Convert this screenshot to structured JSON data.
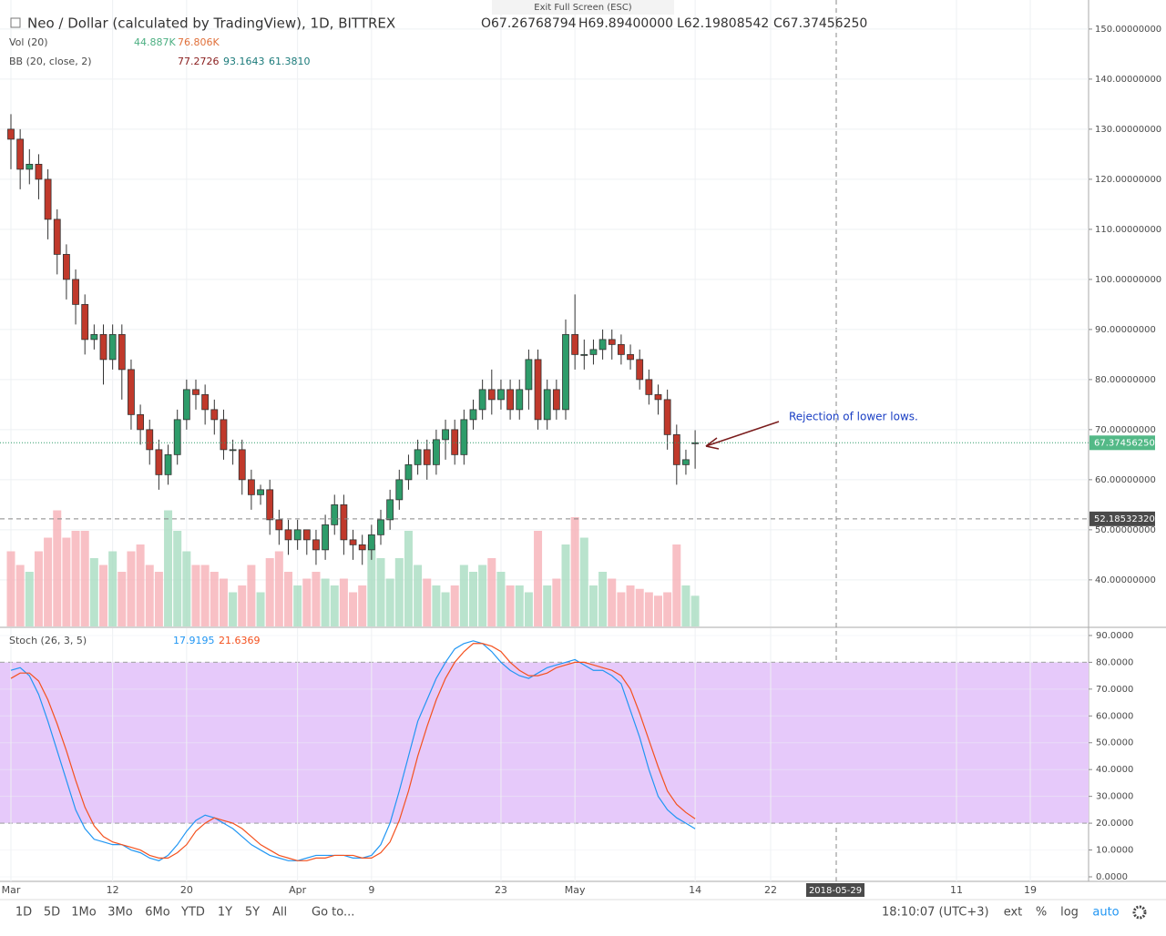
{
  "header": {
    "title": "Neo / Dollar (calculated by TradingView), 1D, BITTREX",
    "open": "O67.26768794",
    "high": "H69.89400000",
    "low": "L62.19808542",
    "close": "C67.37456250",
    "exit": "Exit Full Screen (ESC)",
    "vol_label": "Vol (20)",
    "vol_value": "44.887K",
    "vol_ma": "76.806K",
    "bb_label": "BB (20, close, 2)",
    "bb_mid": "77.2726",
    "bb_up": "93.1643",
    "bb_low": "61.3810",
    "stoch_label": "Stoch (26, 3, 5)",
    "stoch_k": "17.9195",
    "stoch_d": "21.6369"
  },
  "toolbar": {
    "ranges": [
      "1D",
      "5D",
      "1Mo",
      "3Mo",
      "6Mo",
      "YTD",
      "1Y",
      "5Y",
      "All"
    ],
    "goto": "Go to...",
    "clock": "18:10:07 (UTC+3)",
    "options": [
      "ext",
      "%",
      "log",
      "auto"
    ]
  },
  "chart_data": {
    "type": "candlestick",
    "annotation": "Rejection of lower lows.",
    "categories": [
      "Mar",
      null,
      null,
      null,
      null,
      null,
      null,
      null,
      null,
      null,
      null,
      "12",
      null,
      null,
      null,
      null,
      null,
      null,
      null,
      "20",
      null,
      null,
      null,
      null,
      null,
      null,
      null,
      null,
      null,
      null,
      null,
      "Apr",
      null,
      null,
      null,
      null,
      null,
      null,
      null,
      "9",
      null,
      null,
      null,
      null,
      null,
      null,
      null,
      null,
      null,
      null,
      null,
      null,
      null,
      "23",
      null,
      null,
      null,
      null,
      null,
      null,
      null,
      "May",
      null,
      null,
      null,
      null,
      null,
      null,
      null,
      null,
      null,
      null,
      null,
      null,
      "14"
    ],
    "future_labels": [
      "22",
      "2018-05-29",
      "11",
      "19"
    ],
    "open": [
      130,
      128,
      122,
      123,
      120,
      112,
      105,
      100,
      95,
      88,
      89,
      84,
      89,
      82,
      73,
      70,
      66,
      61,
      65,
      72,
      78,
      77,
      74,
      72,
      66,
      66,
      60,
      57,
      58,
      52,
      50,
      48,
      50,
      48,
      46,
      51,
      55,
      48,
      47,
      46,
      49,
      52,
      56,
      60,
      63,
      66,
      63,
      68,
      70,
      65,
      72,
      74,
      78,
      76,
      78,
      74,
      78,
      84,
      72,
      78,
      74,
      89,
      85,
      85,
      86,
      88,
      87,
      85,
      84,
      80,
      77,
      76,
      69,
      63,
      67.26768794
    ],
    "high": [
      133,
      130,
      126,
      125,
      122,
      114,
      107,
      102,
      97,
      91,
      91,
      91,
      91,
      84,
      75,
      72,
      68,
      67,
      74,
      80,
      80,
      79,
      76,
      74,
      68,
      68,
      62,
      59,
      60,
      54,
      52,
      52,
      50,
      50,
      53,
      57,
      57,
      50,
      49,
      51,
      54,
      58,
      62,
      65,
      68,
      68,
      70,
      72,
      72,
      74,
      76,
      80,
      82,
      80,
      80,
      80,
      86,
      86,
      80,
      80,
      92,
      97,
      88,
      88,
      90,
      90,
      89,
      87,
      86,
      82,
      79,
      78,
      71,
      66,
      69.894
    ],
    "low": [
      122,
      118,
      119,
      116,
      108,
      101,
      96,
      91,
      85,
      86,
      79,
      82,
      76,
      70,
      67,
      63,
      58,
      59,
      63,
      70,
      74,
      71,
      69,
      64,
      63,
      57,
      54,
      55,
      49,
      47,
      45,
      46,
      45,
      43,
      44,
      49,
      45,
      44,
      43,
      44,
      47,
      50,
      54,
      58,
      61,
      60,
      61,
      64,
      63,
      63,
      70,
      72,
      73,
      74,
      72,
      72,
      74,
      70,
      70,
      72,
      72,
      82,
      82,
      83,
      84,
      84,
      83,
      82,
      78,
      75,
      73,
      66,
      59,
      61,
      62.19808542
    ],
    "close": [
      128,
      122,
      123,
      120,
      112,
      105,
      100,
      95,
      88,
      89,
      84,
      89,
      82,
      73,
      70,
      66,
      61,
      65,
      72,
      78,
      77,
      74,
      72,
      66,
      66,
      60,
      57,
      58,
      52,
      50,
      48,
      50,
      48,
      46,
      51,
      55,
      48,
      47,
      46,
      49,
      52,
      56,
      60,
      63,
      66,
      63,
      68,
      70,
      65,
      72,
      74,
      78,
      76,
      78,
      74,
      78,
      84,
      72,
      78,
      74,
      89,
      85,
      85,
      86,
      88,
      87,
      85,
      84,
      80,
      77,
      76,
      69,
      63,
      64,
      67.3745625
    ],
    "close_label": "67.37456250",
    "crosshair": {
      "value": 52.1853232,
      "label": "52.18532320"
    },
    "volume": [
      110,
      90,
      80,
      110,
      130,
      170,
      130,
      140,
      140,
      100,
      90,
      110,
      80,
      110,
      120,
      90,
      80,
      170,
      140,
      110,
      90,
      90,
      80,
      70,
      50,
      60,
      90,
      50,
      100,
      110,
      80,
      60,
      70,
      80,
      70,
      60,
      70,
      50,
      60,
      120,
      100,
      70,
      100,
      140,
      90,
      70,
      60,
      50,
      60,
      90,
      80,
      90,
      100,
      80,
      60,
      60,
      50,
      140,
      60,
      70,
      120,
      160,
      130,
      60,
      80,
      70,
      50,
      60,
      55,
      50,
      45,
      50,
      120,
      60,
      44.887
    ],
    "ylim": [
      30.7,
      155.8
    ],
    "yticks": [
      {
        "value": 40,
        "label": "40.00000000"
      },
      {
        "value": 50,
        "label": "50.00000000"
      },
      {
        "value": 60,
        "label": "60.00000000"
      },
      {
        "value": 70,
        "label": "70.00000000"
      },
      {
        "value": 80,
        "label": "80.00000000"
      },
      {
        "value": 90,
        "label": "90.00000000"
      },
      {
        "value": 100,
        "label": "100.00000000"
      },
      {
        "value": 110,
        "label": "110.00000000"
      },
      {
        "value": 120,
        "label": "120.00000000"
      },
      {
        "value": 130,
        "label": "130.00000000"
      },
      {
        "value": 140,
        "label": "140.00000000"
      },
      {
        "value": 150,
        "label": "150.00000000"
      }
    ],
    "stoch": {
      "ylim": [
        -1.7,
        92.7
      ],
      "band": [
        20,
        80
      ],
      "yticks": [
        {
          "value": 0,
          "label": "0.0000"
        },
        {
          "value": 10,
          "label": "10.0000"
        },
        {
          "value": 20,
          "label": "20.0000"
        },
        {
          "value": 30,
          "label": "30.0000"
        },
        {
          "value": 40,
          "label": "40.0000"
        },
        {
          "value": 50,
          "label": "50.0000"
        },
        {
          "value": 60,
          "label": "60.0000"
        },
        {
          "value": 70,
          "label": "70.0000"
        },
        {
          "value": 80,
          "label": "80.0000"
        },
        {
          "value": 90,
          "label": "90.0000"
        }
      ],
      "series": [
        {
          "name": "%K",
          "color": "#2196f3",
          "values": [
            77,
            78,
            75,
            68,
            58,
            47,
            36,
            25,
            18,
            14,
            13,
            12,
            12,
            10,
            9,
            7,
            6,
            8,
            12,
            17,
            21,
            23,
            22,
            20,
            18,
            15,
            12,
            10,
            8,
            7,
            6,
            6,
            7,
            8,
            8,
            8,
            8,
            7,
            7,
            8,
            12,
            20,
            32,
            45,
            58,
            66,
            74,
            80,
            85,
            87,
            88,
            87,
            84,
            80,
            77,
            75,
            74,
            76,
            78,
            79,
            80,
            81,
            79,
            77,
            77,
            75,
            72,
            62,
            52,
            40,
            30,
            25,
            22,
            20,
            17.9195
          ]
        },
        {
          "name": "%D",
          "color": "#f4511e",
          "values": [
            74,
            76,
            76,
            73,
            66,
            57,
            47,
            36,
            26,
            19,
            15,
            13,
            12,
            11,
            10,
            8,
            7,
            7,
            9,
            12,
            17,
            20,
            22,
            21,
            20,
            18,
            15,
            12,
            10,
            8,
            7,
            6,
            6,
            7,
            7,
            8,
            8,
            8,
            7,
            7,
            9,
            13,
            21,
            32,
            45,
            56,
            66,
            74,
            80,
            84,
            87,
            87,
            86,
            84,
            80,
            77,
            75,
            75,
            76,
            78,
            79,
            80,
            80,
            79,
            78,
            77,
            75,
            70,
            61,
            51,
            41,
            32,
            27,
            24,
            21.6369
          ]
        }
      ]
    },
    "up_color": "#2e9c6a",
    "down_color": "#c0392b",
    "grid": true
  }
}
